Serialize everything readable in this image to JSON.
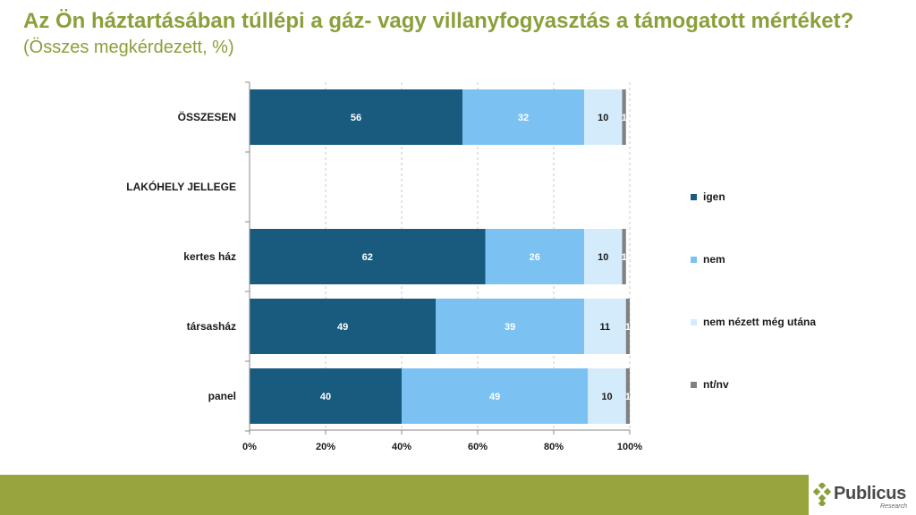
{
  "header": {
    "title": "Az Ön háztartásában túllépi a gáz- vagy villanyfogyasztás a támogatott mértéket?",
    "subtitle": "(Összes megkérdezett, %)"
  },
  "brand": {
    "name": "Publicus",
    "tagline": "Research",
    "footer_color": "#98a43c",
    "logo_color": "#8aa03a"
  },
  "chart_data": {
    "type": "bar",
    "orientation": "horizontal",
    "stacked": true,
    "percent": true,
    "categories": [
      "ÖSSZESEN",
      "LAKÓHELY JELLEGE",
      "kertes ház",
      "társasház",
      "panel"
    ],
    "series": [
      {
        "name": "igen",
        "color": "#185b7e",
        "label_color": "#ffffff",
        "values": [
          56,
          null,
          62,
          49,
          40
        ]
      },
      {
        "name": "nem",
        "color": "#7bc2f2",
        "label_color": "#ffffff",
        "values": [
          32,
          null,
          26,
          39,
          49
        ]
      },
      {
        "name": "nem nézett még utána",
        "color": "#d4ebfb",
        "label_color": "#1a1a1a",
        "values": [
          10,
          null,
          10,
          11,
          10
        ]
      },
      {
        "name": "nt/nv",
        "color": "#808080",
        "label_color": "#ffffff",
        "values": [
          1,
          null,
          1,
          1,
          1
        ]
      }
    ],
    "xlim": [
      0,
      100
    ],
    "xticks": [
      "0%",
      "20%",
      "40%",
      "60%",
      "80%",
      "100%"
    ],
    "grid": "vertical dashed",
    "legend": "right"
  }
}
